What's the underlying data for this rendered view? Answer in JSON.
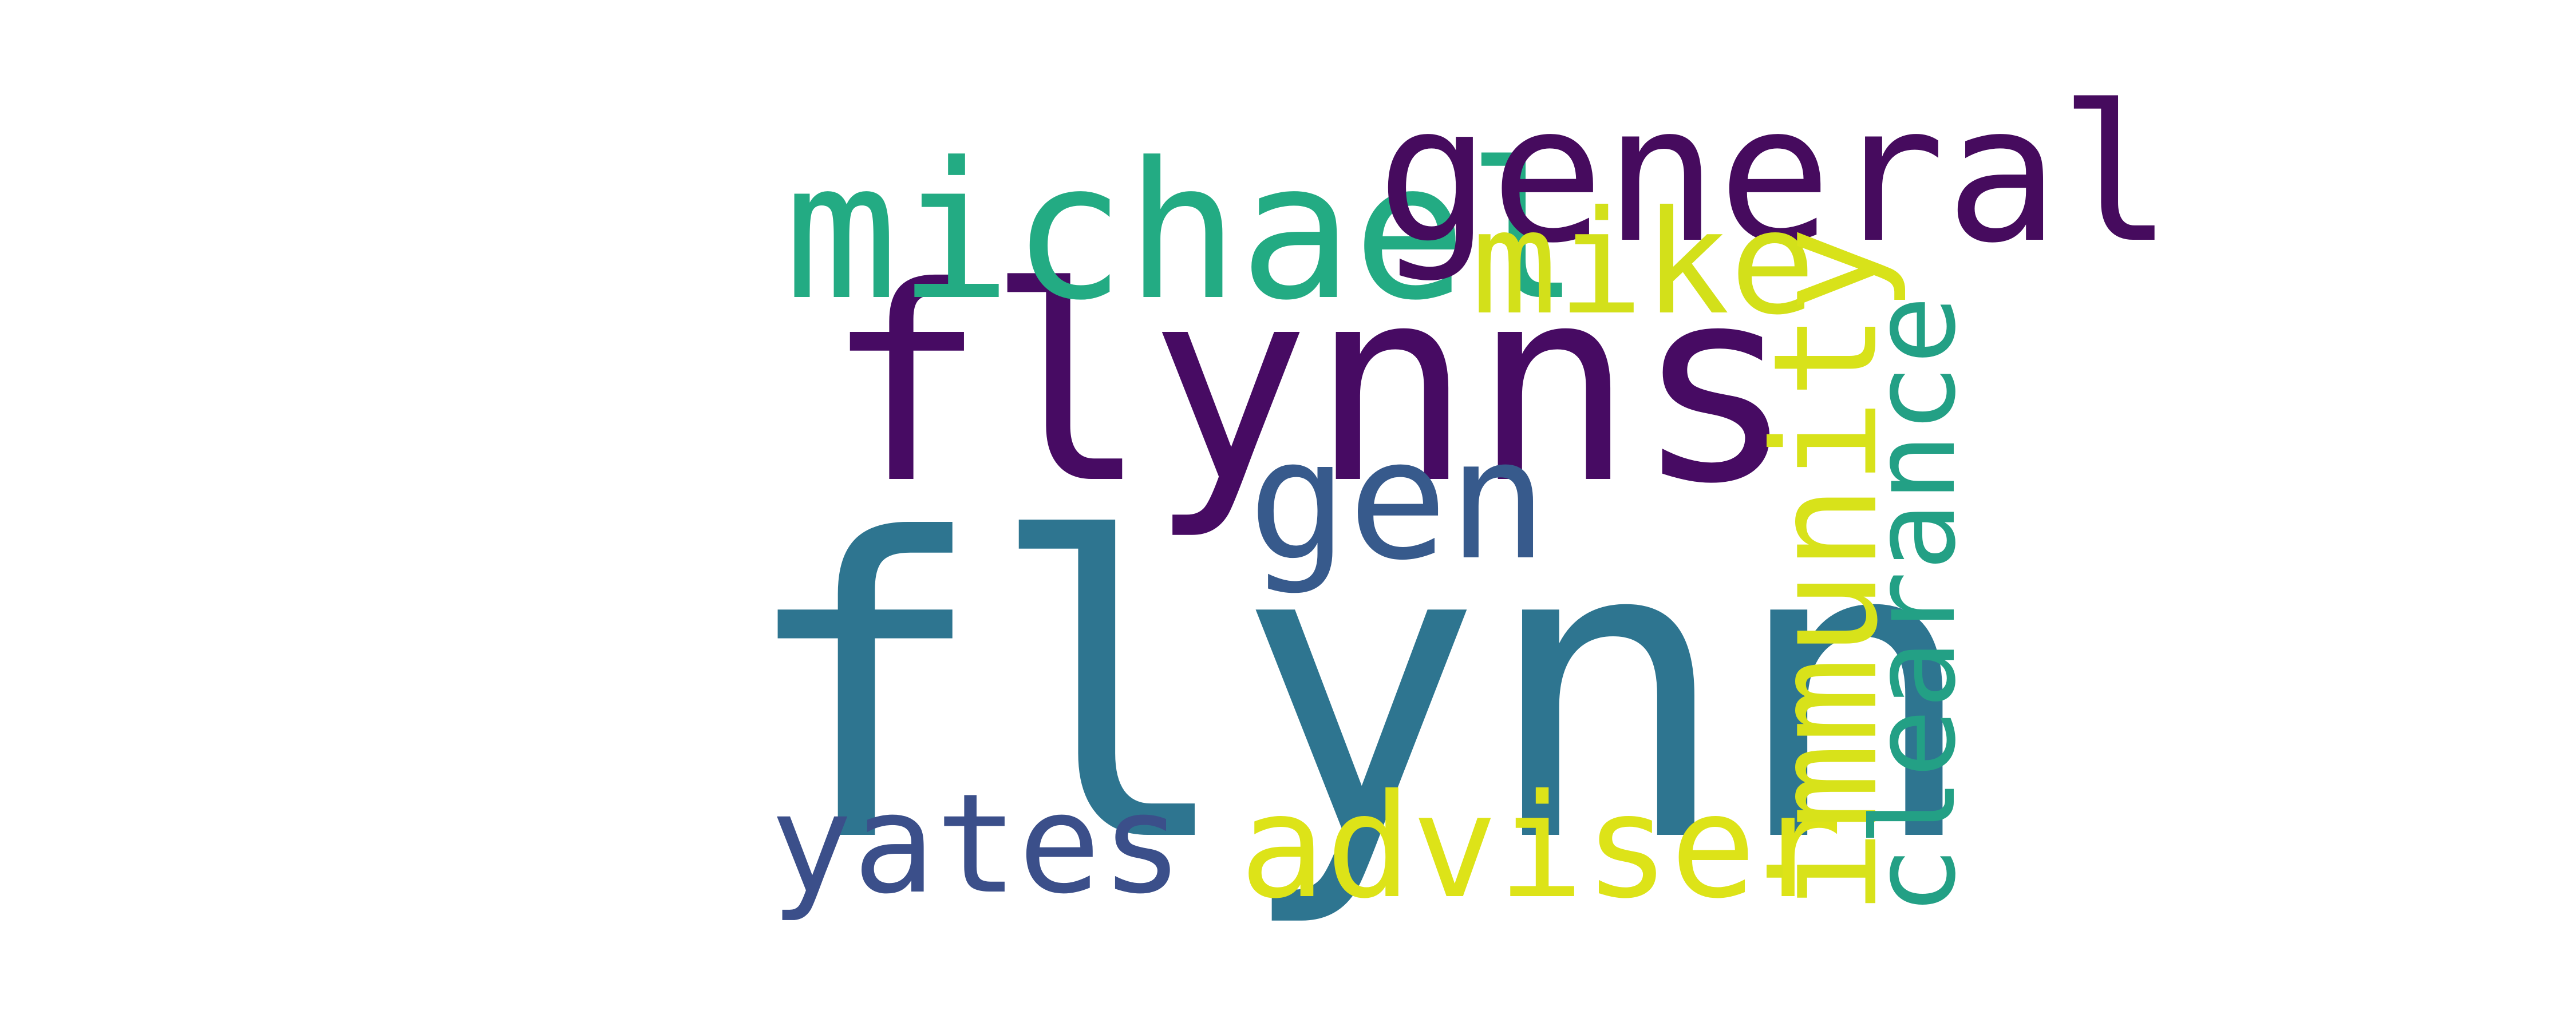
{
  "words": {
    "flynn": {
      "text": "flynn",
      "color": "#2e7590"
    },
    "flynns": {
      "text": "flynns",
      "color": "#470b63"
    },
    "michael": {
      "text": "michael",
      "color": "#23ab83"
    },
    "general": {
      "text": "general",
      "color": "#460b5e"
    },
    "mike": {
      "text": "mike",
      "color": "#d3e01a"
    },
    "gen": {
      "text": "gen",
      "color": "#375a8c"
    },
    "yates": {
      "text": "yates",
      "color": "#3b4f8a"
    },
    "adviser": {
      "text": "adviser",
      "color": "#dde318"
    },
    "immunity": {
      "text": "immunity",
      "color": "#d8e21a"
    },
    "clearance": {
      "text": "clearance",
      "color": "#23a085"
    }
  },
  "background": "#ffffff"
}
